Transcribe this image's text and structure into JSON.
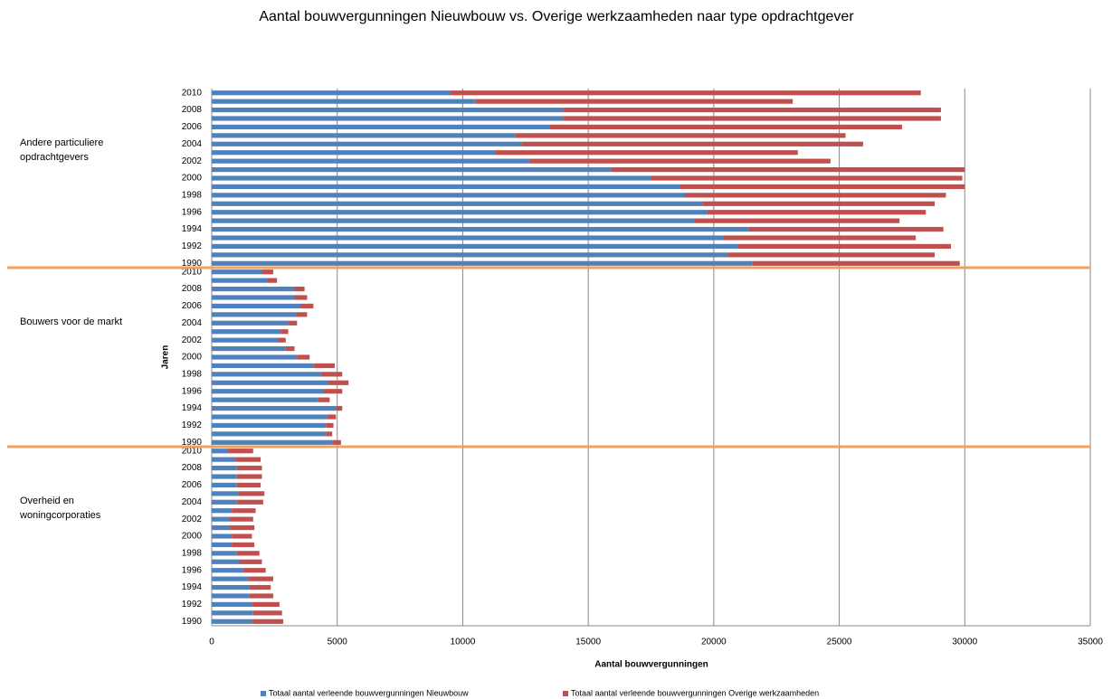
{
  "chart_data": {
    "type": "bar",
    "orientation": "horizontal",
    "stacked": true,
    "title": "Aantal bouwvergunningen Nieuwbouw vs. Overige werkzaamheden naar type opdrachtgever",
    "xlabel": "Aantal bouwvergunningen",
    "ylabel": "Jaren",
    "groups": [
      "Andere particuliere opdrachtgevers",
      "Bouwers voor de markt",
      "Overheid en woningcorporaties"
    ],
    "categories": [
      "2010",
      null,
      "2008",
      null,
      "2006",
      null,
      "2004",
      null,
      "2002",
      null,
      "2000",
      null,
      "1998",
      null,
      "1996",
      null,
      "1994",
      null,
      "1992",
      null,
      "1990",
      "2010",
      null,
      "2008",
      null,
      "2006",
      null,
      "2004",
      null,
      "2002",
      null,
      "2000",
      null,
      "1998",
      null,
      "1996",
      null,
      "1994",
      null,
      "1992",
      null,
      "1990",
      "2010",
      null,
      "2008",
      null,
      "2006",
      null,
      "2004",
      null,
      "2002",
      null,
      "2000",
      null,
      "1998",
      null,
      "1996",
      null,
      "1994",
      null,
      "1992",
      null,
      "1990"
    ],
    "series": [
      {
        "name": "Totaal aantal verleende bouwvergunningen Nieuwbouw",
        "color": "#4f81bd",
        "values": [
          9500,
          10500,
          14000,
          14000,
          13450,
          12100,
          12350,
          11300,
          12650,
          15900,
          17500,
          18650,
          18850,
          19550,
          19750,
          19250,
          21400,
          20400,
          20950,
          20550,
          21550,
          2000,
          2200,
          3300,
          3300,
          3550,
          3350,
          3050,
          2750,
          2650,
          2950,
          3400,
          4050,
          4350,
          4650,
          4450,
          4250,
          4950,
          4600,
          4550,
          4550,
          4800,
          650,
          950,
          1000,
          1000,
          1000,
          1050,
          1000,
          800,
          700,
          700,
          800,
          800,
          1000,
          1100,
          1250,
          1450,
          1500,
          1500,
          1600,
          1650,
          1600
        ]
      },
      {
        "name": "Totaal aantal verleende bouwvergunningen Overige werkzaamheden",
        "color": "#c0504d",
        "values": [
          18750,
          12650,
          15050,
          15050,
          14050,
          13150,
          13600,
          12050,
          12000,
          14100,
          12400,
          11350,
          10400,
          9250,
          8700,
          8150,
          7750,
          7650,
          8500,
          8250,
          8250,
          450,
          400,
          400,
          500,
          500,
          450,
          350,
          300,
          300,
          350,
          500,
          850,
          850,
          800,
          750,
          450,
          250,
          350,
          300,
          250,
          350,
          1000,
          1000,
          1000,
          1000,
          950,
          1050,
          1050,
          950,
          950,
          1000,
          800,
          900,
          900,
          900,
          900,
          1000,
          850,
          950,
          1100,
          1150,
          1250
        ]
      }
    ],
    "xlim": [
      0,
      35000
    ],
    "xticks": [
      0,
      5000,
      10000,
      15000,
      20000,
      25000,
      30000,
      35000
    ],
    "grid": true
  }
}
